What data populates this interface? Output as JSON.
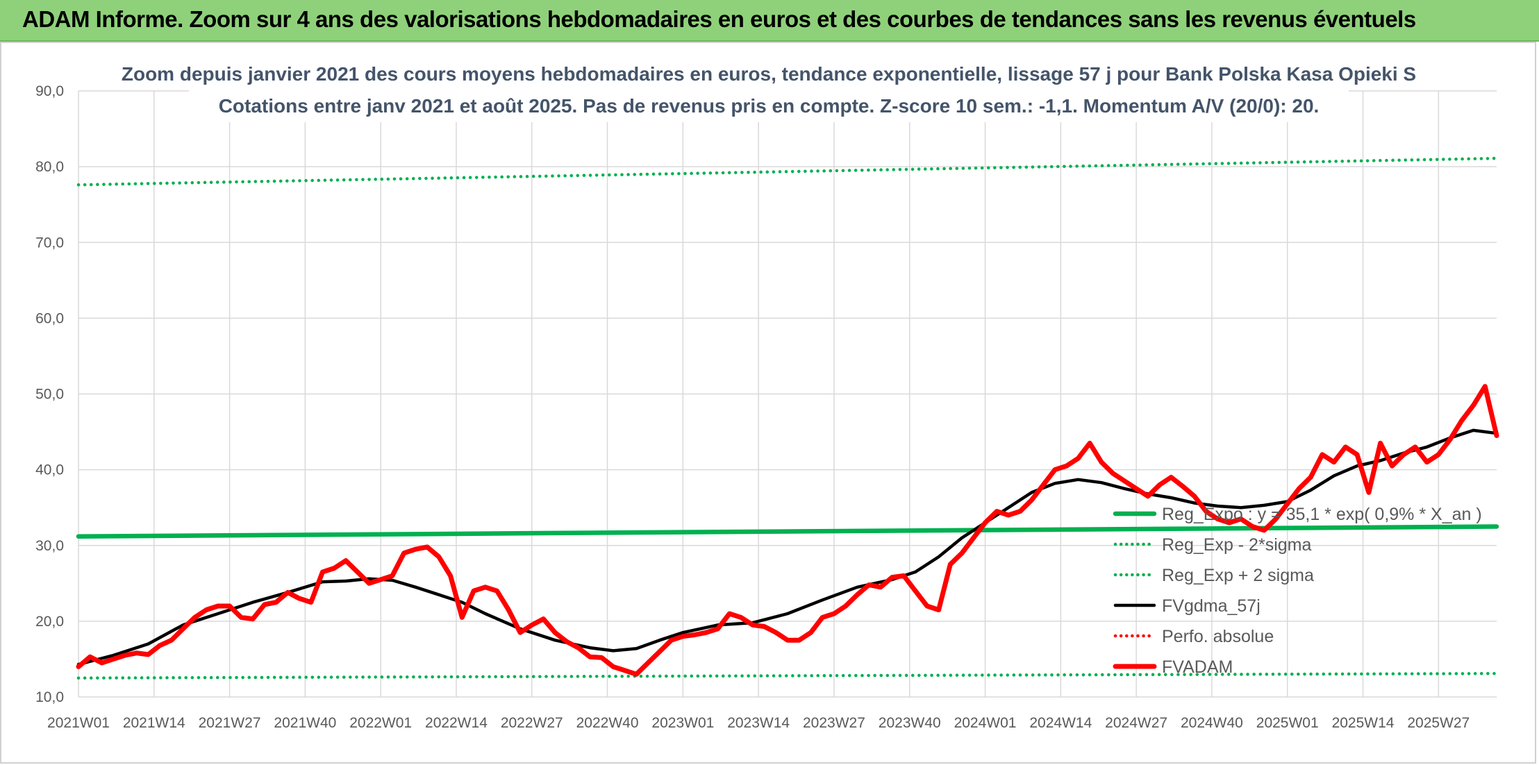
{
  "header": {
    "title": "ADAM Informe. Zoom sur 4 ans des valorisations hebdomadaires en euros et des courbes de tendances sans les revenus éventuels"
  },
  "colors": {
    "header_bg": "#8fd17a",
    "trend_green": "#00b050",
    "price_red": "#ff0000",
    "moving_avg": "#000000",
    "grid": "#d9d9d9"
  },
  "chart_data": {
    "type": "line",
    "title": "Zoom depuis janvier 2021 des cours moyens hebdomadaires en euros, tendance exponentielle, lissage 57 j pour Bank Polska Kasa Opieki S",
    "subtitle": "Cotations entre janv 2021 et août 2025. Pas de revenus pris en compte. Z-score 10 sem.: -1,1. Momentum A/V (20/0): 20.",
    "ylim": [
      10,
      90
    ],
    "yticks": [
      "10,0",
      "20,0",
      "30,0",
      "40,0",
      "50,0",
      "60,0",
      "70,0",
      "80,0",
      "90,0"
    ],
    "x_tick_labels": [
      "2021W01",
      "2021W14",
      "2021W27",
      "2021W40",
      "2022W01",
      "2022W14",
      "2022W27",
      "2022W40",
      "2023W01",
      "2023W14",
      "2023W27",
      "2023W40",
      "2024W01",
      "2024W14",
      "2024W27",
      "2024W40",
      "2025W01",
      "2025W14",
      "2025W27"
    ],
    "x_tick_weeks": [
      0,
      13,
      26,
      39,
      52,
      65,
      78,
      91,
      104,
      117,
      130,
      143,
      156,
      169,
      182,
      195,
      208,
      221,
      234
    ],
    "x_range_weeks": [
      0,
      244
    ],
    "grid": true,
    "legend_position": "right",
    "series": [
      {
        "name": "Reg_Expo : y = 35,1 * exp( 0,9% * X_an )",
        "style": "solid-thick",
        "color": "#00b050",
        "points": [
          [
            0,
            31.2
          ],
          [
            244,
            32.5
          ]
        ]
      },
      {
        "name": "Reg_Exp - 2*sigma",
        "style": "dotted",
        "color": "#00b050",
        "points": [
          [
            0,
            12.5
          ],
          [
            244,
            13.1
          ]
        ]
      },
      {
        "name": "Reg_Exp + 2 sigma",
        "style": "dotted",
        "color": "#00b050",
        "points": [
          [
            0,
            77.6
          ],
          [
            244,
            81.1
          ]
        ]
      },
      {
        "name": "FVgdma_57j",
        "style": "solid",
        "color": "#000000",
        "points": [
          [
            0,
            14.3
          ],
          [
            6,
            15.5
          ],
          [
            12,
            17
          ],
          [
            18,
            19.5
          ],
          [
            24,
            21
          ],
          [
            30,
            22.5
          ],
          [
            36,
            23.8
          ],
          [
            42,
            25.2
          ],
          [
            46,
            25.3
          ],
          [
            50,
            25.6
          ],
          [
            54,
            25.4
          ],
          [
            58,
            24.5
          ],
          [
            62,
            23.5
          ],
          [
            66,
            22.5
          ],
          [
            70,
            21
          ],
          [
            76,
            19
          ],
          [
            82,
            17.5
          ],
          [
            88,
            16.5
          ],
          [
            92,
            16.1
          ],
          [
            96,
            16.4
          ],
          [
            100,
            17.5
          ],
          [
            104,
            18.5
          ],
          [
            110,
            19.5
          ],
          [
            116,
            19.8
          ],
          [
            122,
            21
          ],
          [
            128,
            22.8
          ],
          [
            134,
            24.5
          ],
          [
            140,
            25.5
          ],
          [
            144,
            26.5
          ],
          [
            148,
            28.5
          ],
          [
            152,
            31
          ],
          [
            156,
            33
          ],
          [
            160,
            35
          ],
          [
            164,
            37
          ],
          [
            168,
            38.2
          ],
          [
            172,
            38.7
          ],
          [
            176,
            38.3
          ],
          [
            180,
            37.5
          ],
          [
            184,
            36.8
          ],
          [
            188,
            36.3
          ],
          [
            192,
            35.6
          ],
          [
            196,
            35.2
          ],
          [
            200,
            35
          ],
          [
            204,
            35.3
          ],
          [
            208,
            35.8
          ],
          [
            212,
            37.3
          ],
          [
            216,
            39.2
          ],
          [
            220,
            40.5
          ],
          [
            224,
            41.2
          ],
          [
            228,
            42.2
          ],
          [
            232,
            43
          ],
          [
            236,
            44.2
          ],
          [
            240,
            45.2
          ],
          [
            244,
            44.8
          ]
        ]
      },
      {
        "name": "Perfo. absolue",
        "style": "dotted",
        "color": "#ff0000",
        "points": []
      },
      {
        "name": "FVADAM",
        "style": "solid-thick",
        "color": "#ff0000",
        "points": [
          [
            0,
            14
          ],
          [
            2,
            15.3
          ],
          [
            4,
            14.5
          ],
          [
            6,
            15
          ],
          [
            8,
            15.5
          ],
          [
            10,
            15.8
          ],
          [
            12,
            15.6
          ],
          [
            14,
            16.8
          ],
          [
            16,
            17.5
          ],
          [
            18,
            19
          ],
          [
            20,
            20.5
          ],
          [
            22,
            21.5
          ],
          [
            24,
            22
          ],
          [
            26,
            22
          ],
          [
            28,
            20.5
          ],
          [
            30,
            20.3
          ],
          [
            32,
            22.2
          ],
          [
            34,
            22.5
          ],
          [
            36,
            23.8
          ],
          [
            38,
            23
          ],
          [
            40,
            22.5
          ],
          [
            42,
            26.5
          ],
          [
            44,
            27
          ],
          [
            46,
            28
          ],
          [
            48,
            26.5
          ],
          [
            50,
            25
          ],
          [
            52,
            25.5
          ],
          [
            54,
            26
          ],
          [
            56,
            29
          ],
          [
            58,
            29.5
          ],
          [
            60,
            29.8
          ],
          [
            62,
            28.5
          ],
          [
            64,
            26
          ],
          [
            66,
            20.5
          ],
          [
            68,
            24
          ],
          [
            70,
            24.5
          ],
          [
            72,
            24
          ],
          [
            74,
            21.5
          ],
          [
            76,
            18.5
          ],
          [
            78,
            19.5
          ],
          [
            80,
            20.3
          ],
          [
            82,
            18.5
          ],
          [
            84,
            17.3
          ],
          [
            86,
            16.5
          ],
          [
            88,
            15.3
          ],
          [
            90,
            15.2
          ],
          [
            92,
            14
          ],
          [
            94,
            13.5
          ],
          [
            96,
            13
          ],
          [
            98,
            14.5
          ],
          [
            100,
            16
          ],
          [
            102,
            17.5
          ],
          [
            104,
            18
          ],
          [
            106,
            18.2
          ],
          [
            108,
            18.5
          ],
          [
            110,
            19
          ],
          [
            112,
            21
          ],
          [
            114,
            20.5
          ],
          [
            116,
            19.5
          ],
          [
            118,
            19.3
          ],
          [
            120,
            18.5
          ],
          [
            122,
            17.5
          ],
          [
            124,
            17.5
          ],
          [
            126,
            18.5
          ],
          [
            128,
            20.5
          ],
          [
            130,
            21
          ],
          [
            132,
            22
          ],
          [
            134,
            23.5
          ],
          [
            136,
            24.8
          ],
          [
            138,
            24.5
          ],
          [
            140,
            25.8
          ],
          [
            142,
            26
          ],
          [
            144,
            24
          ],
          [
            146,
            22
          ],
          [
            148,
            21.5
          ],
          [
            150,
            27.5
          ],
          [
            152,
            29
          ],
          [
            154,
            31
          ],
          [
            156,
            33
          ],
          [
            158,
            34.5
          ],
          [
            160,
            34
          ],
          [
            162,
            34.5
          ],
          [
            164,
            36
          ],
          [
            166,
            38
          ],
          [
            168,
            40
          ],
          [
            170,
            40.5
          ],
          [
            172,
            41.5
          ],
          [
            174,
            43.5
          ],
          [
            176,
            41
          ],
          [
            178,
            39.5
          ],
          [
            180,
            38.5
          ],
          [
            182,
            37.5
          ],
          [
            184,
            36.5
          ],
          [
            186,
            38
          ],
          [
            188,
            39
          ],
          [
            190,
            37.8
          ],
          [
            192,
            36.5
          ],
          [
            194,
            34.5
          ],
          [
            196,
            33.5
          ],
          [
            198,
            33
          ],
          [
            200,
            33.5
          ],
          [
            202,
            32.5
          ],
          [
            204,
            32
          ],
          [
            206,
            33.5
          ],
          [
            208,
            35.5
          ],
          [
            210,
            37.5
          ],
          [
            212,
            39
          ],
          [
            214,
            42
          ],
          [
            216,
            41
          ],
          [
            218,
            43
          ],
          [
            220,
            42
          ],
          [
            222,
            37
          ],
          [
            224,
            43.5
          ],
          [
            226,
            40.5
          ],
          [
            228,
            42
          ],
          [
            230,
            43
          ],
          [
            232,
            41
          ],
          [
            234,
            42
          ],
          [
            236,
            44
          ],
          [
            238,
            46.5
          ],
          [
            240,
            48.5
          ],
          [
            242,
            51
          ],
          [
            244,
            44.5
          ]
        ]
      }
    ]
  }
}
